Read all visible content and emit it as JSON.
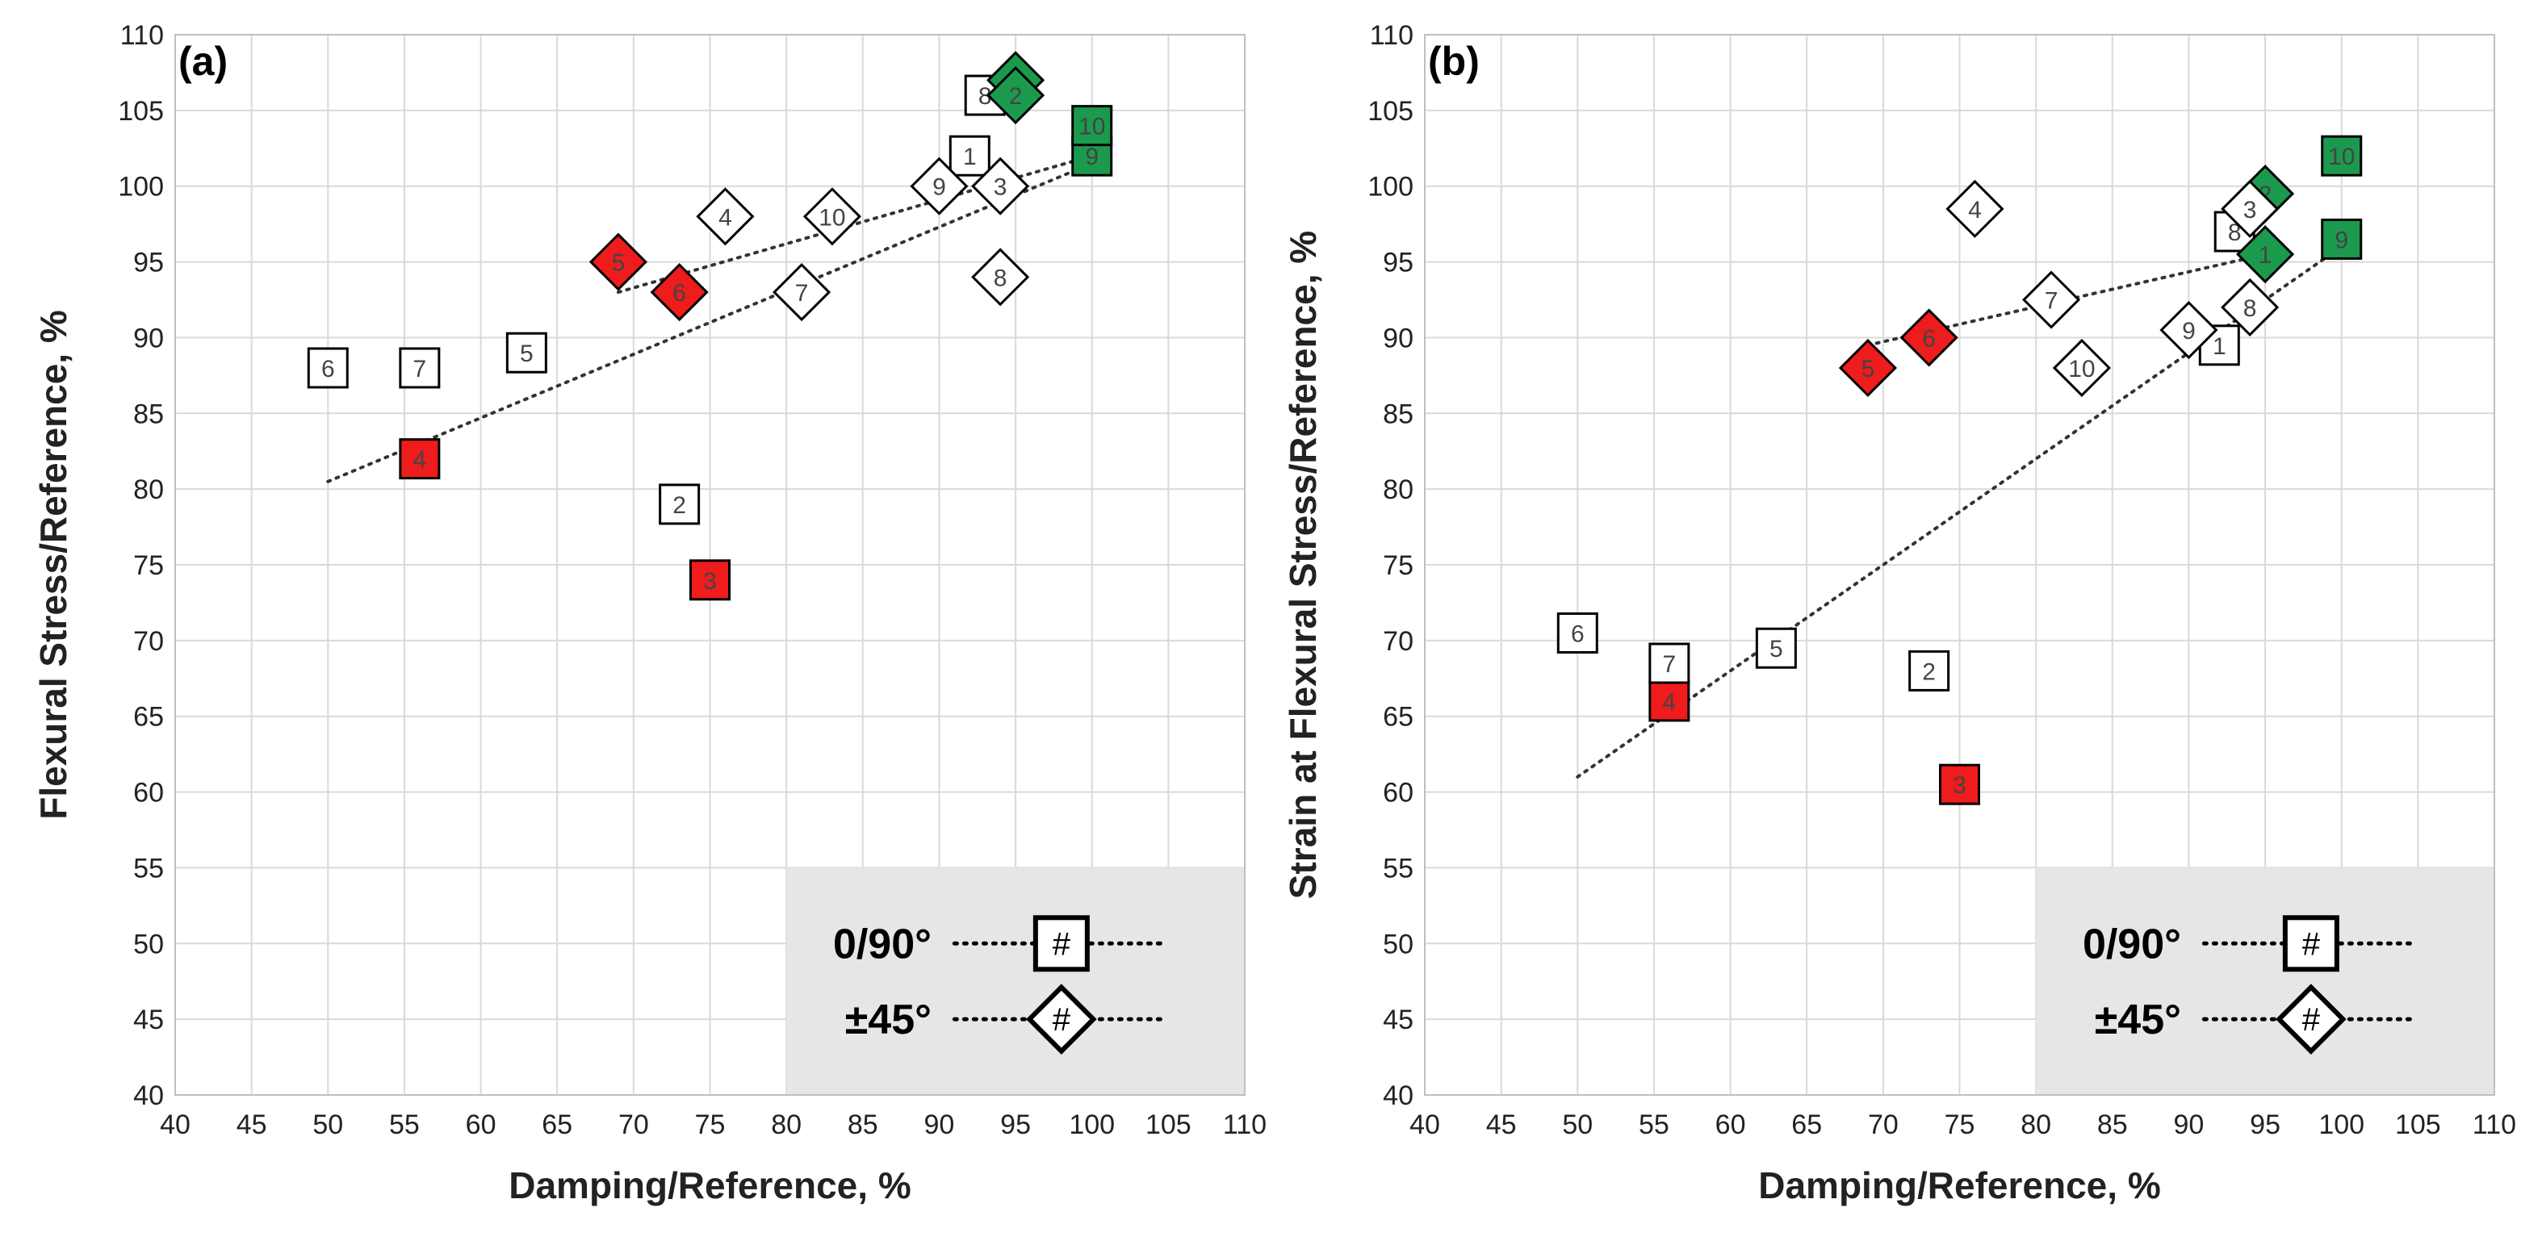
{
  "chart_data": [
    {
      "type": "scatter",
      "panel_label": "(a)",
      "xlabel": "Damping/Reference, %",
      "ylabel": "Flexural Stress/Reference, %",
      "xlim": [
        40,
        110
      ],
      "ylim": [
        40,
        110
      ],
      "xticks": [
        "40",
        "45",
        "50",
        "55",
        "60",
        "65",
        "70",
        "75",
        "80",
        "85",
        "90",
        "95",
        "100",
        "105",
        "110"
      ],
      "yticks": [
        "40",
        "45",
        "50",
        "55",
        "60",
        "65",
        "70",
        "75",
        "80",
        "85",
        "90",
        "95",
        "100",
        "105",
        "110"
      ],
      "grid": true,
      "series": [
        {
          "name": "0/90°",
          "marker": "square",
          "points": [
            {
              "label": "1",
              "x": 92,
              "y": 102,
              "fill": "#ffffff"
            },
            {
              "label": "2",
              "x": 73,
              "y": 79,
              "fill": "#ffffff"
            },
            {
              "label": "3",
              "x": 75,
              "y": 74,
              "fill": "#ee1c1c"
            },
            {
              "label": "4",
              "x": 56,
              "y": 82,
              "fill": "#ee1c1c"
            },
            {
              "label": "5",
              "x": 63,
              "y": 89,
              "fill": "#ffffff"
            },
            {
              "label": "6",
              "x": 50,
              "y": 88,
              "fill": "#ffffff"
            },
            {
              "label": "7",
              "x": 56,
              "y": 88,
              "fill": "#ffffff"
            },
            {
              "label": "8",
              "x": 93,
              "y": 106,
              "fill": "#ffffff"
            },
            {
              "label": "9",
              "x": 100,
              "y": 102,
              "fill": "#1b9a4e"
            },
            {
              "label": "10",
              "x": 100,
              "y": 104,
              "fill": "#1b9a4e"
            }
          ]
        },
        {
          "name": "±45°",
          "marker": "diamond",
          "points": [
            {
              "label": "1",
              "x": 95,
              "y": 107,
              "fill": "#1b9a4e"
            },
            {
              "label": "2",
              "x": 95,
              "y": 106,
              "fill": "#1b9a4e"
            },
            {
              "label": "3",
              "x": 94,
              "y": 100,
              "fill": "#ffffff"
            },
            {
              "label": "4",
              "x": 76,
              "y": 98,
              "fill": "#ffffff"
            },
            {
              "label": "5",
              "x": 69,
              "y": 95,
              "fill": "#ee1c1c"
            },
            {
              "label": "6",
              "x": 73,
              "y": 93,
              "fill": "#ee1c1c"
            },
            {
              "label": "7",
              "x": 81,
              "y": 93,
              "fill": "#ffffff"
            },
            {
              "label": "8",
              "x": 94,
              "y": 94,
              "fill": "#ffffff"
            },
            {
              "label": "9",
              "x": 90,
              "y": 100,
              "fill": "#ffffff"
            },
            {
              "label": "10",
              "x": 83,
              "y": 98,
              "fill": "#ffffff"
            }
          ]
        }
      ],
      "trendlines": [
        {
          "series": "0/90°",
          "x": [
            50,
            100
          ],
          "y": [
            80.5,
            101.5
          ]
        },
        {
          "series": "±45°",
          "x": [
            69,
            100
          ],
          "y": [
            93,
            102
          ]
        }
      ],
      "legend": {
        "position": "bottom-right",
        "entries": [
          {
            "label": "0/90°",
            "marker": "square",
            "symbol": "#"
          },
          {
            "label": "±45°",
            "marker": "diamond",
            "symbol": "#"
          }
        ]
      }
    },
    {
      "type": "scatter",
      "panel_label": "(b)",
      "xlabel": "Damping/Reference, %",
      "ylabel": "Strain at Flexural Stress/Reference, %",
      "xlim": [
        40,
        110
      ],
      "ylim": [
        40,
        110
      ],
      "xticks": [
        "40",
        "45",
        "50",
        "55",
        "60",
        "65",
        "70",
        "75",
        "80",
        "85",
        "90",
        "95",
        "100",
        "105",
        "110"
      ],
      "yticks": [
        "40",
        "45",
        "50",
        "55",
        "60",
        "65",
        "70",
        "75",
        "80",
        "85",
        "90",
        "95",
        "100",
        "105",
        "110"
      ],
      "grid": true,
      "series": [
        {
          "name": "0/90°",
          "marker": "square",
          "points": [
            {
              "label": "1",
              "x": 92,
              "y": 89.5,
              "fill": "#ffffff"
            },
            {
              "label": "2",
              "x": 73,
              "y": 68,
              "fill": "#ffffff"
            },
            {
              "label": "3",
              "x": 75,
              "y": 60.5,
              "fill": "#ee1c1c"
            },
            {
              "label": "4",
              "x": 56,
              "y": 66,
              "fill": "#ee1c1c"
            },
            {
              "label": "5",
              "x": 63,
              "y": 69.5,
              "fill": "#ffffff"
            },
            {
              "label": "6",
              "x": 50,
              "y": 70.5,
              "fill": "#ffffff"
            },
            {
              "label": "7",
              "x": 56,
              "y": 68.5,
              "fill": "#ffffff"
            },
            {
              "label": "8",
              "x": 93,
              "y": 97,
              "fill": "#ffffff"
            },
            {
              "label": "9",
              "x": 100,
              "y": 96.5,
              "fill": "#1b9a4e"
            },
            {
              "label": "10",
              "x": 100,
              "y": 102,
              "fill": "#1b9a4e"
            }
          ]
        },
        {
          "name": "±45°",
          "marker": "diamond",
          "points": [
            {
              "label": "1",
              "x": 95,
              "y": 95.5,
              "fill": "#1b9a4e"
            },
            {
              "label": "2",
              "x": 95,
              "y": 99.5,
              "fill": "#1b9a4e"
            },
            {
              "label": "3",
              "x": 94,
              "y": 98.5,
              "fill": "#ffffff"
            },
            {
              "label": "4",
              "x": 76,
              "y": 98.5,
              "fill": "#ffffff"
            },
            {
              "label": "5",
              "x": 69,
              "y": 88,
              "fill": "#ee1c1c"
            },
            {
              "label": "6",
              "x": 73,
              "y": 90,
              "fill": "#ee1c1c"
            },
            {
              "label": "7",
              "x": 81,
              "y": 92.5,
              "fill": "#ffffff"
            },
            {
              "label": "8",
              "x": 94,
              "y": 92,
              "fill": "#ffffff"
            },
            {
              "label": "9",
              "x": 90,
              "y": 90.5,
              "fill": "#ffffff"
            },
            {
              "label": "10",
              "x": 83,
              "y": 88,
              "fill": "#ffffff"
            }
          ]
        }
      ],
      "trendlines": [
        {
          "series": "0/90°",
          "x": [
            50,
            100
          ],
          "y": [
            61,
            96
          ]
        },
        {
          "series": "±45°",
          "x": [
            69,
            95
          ],
          "y": [
            89.5,
            95.5
          ]
        }
      ],
      "legend": {
        "position": "bottom-right",
        "entries": [
          {
            "label": "0/90°",
            "marker": "square",
            "symbol": "#"
          },
          {
            "label": "±45°",
            "marker": "diamond",
            "symbol": "#"
          }
        ]
      }
    }
  ]
}
